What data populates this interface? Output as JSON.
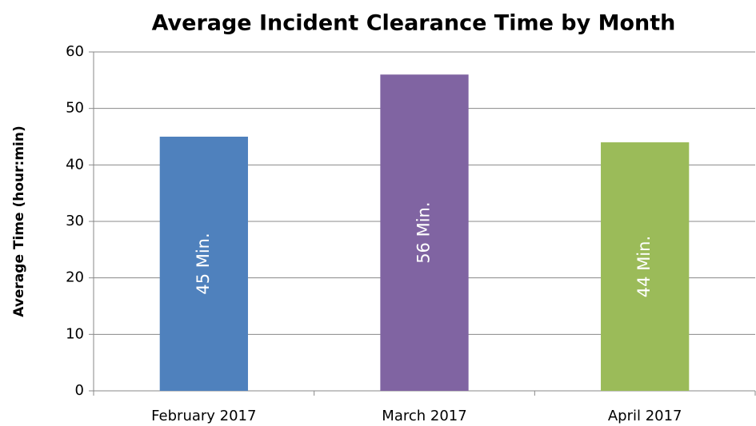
{
  "chart_data": {
    "type": "bar",
    "title": "Average Incident Clearance Time by Month",
    "y_label": "Average Time (hour:min)",
    "categories": [
      "February 2017",
      "March 2017",
      "April 2017"
    ],
    "values": [
      45,
      56,
      44
    ],
    "value_labels": [
      "45 Min.",
      "56 Min.",
      "44 Min."
    ],
    "colors": [
      "#4f81bd",
      "#8064a2",
      "#9bbb59"
    ],
    "ylim": [
      0,
      60
    ],
    "yticks": [
      0,
      10,
      20,
      30,
      40,
      50,
      60
    ],
    "grid": true
  }
}
